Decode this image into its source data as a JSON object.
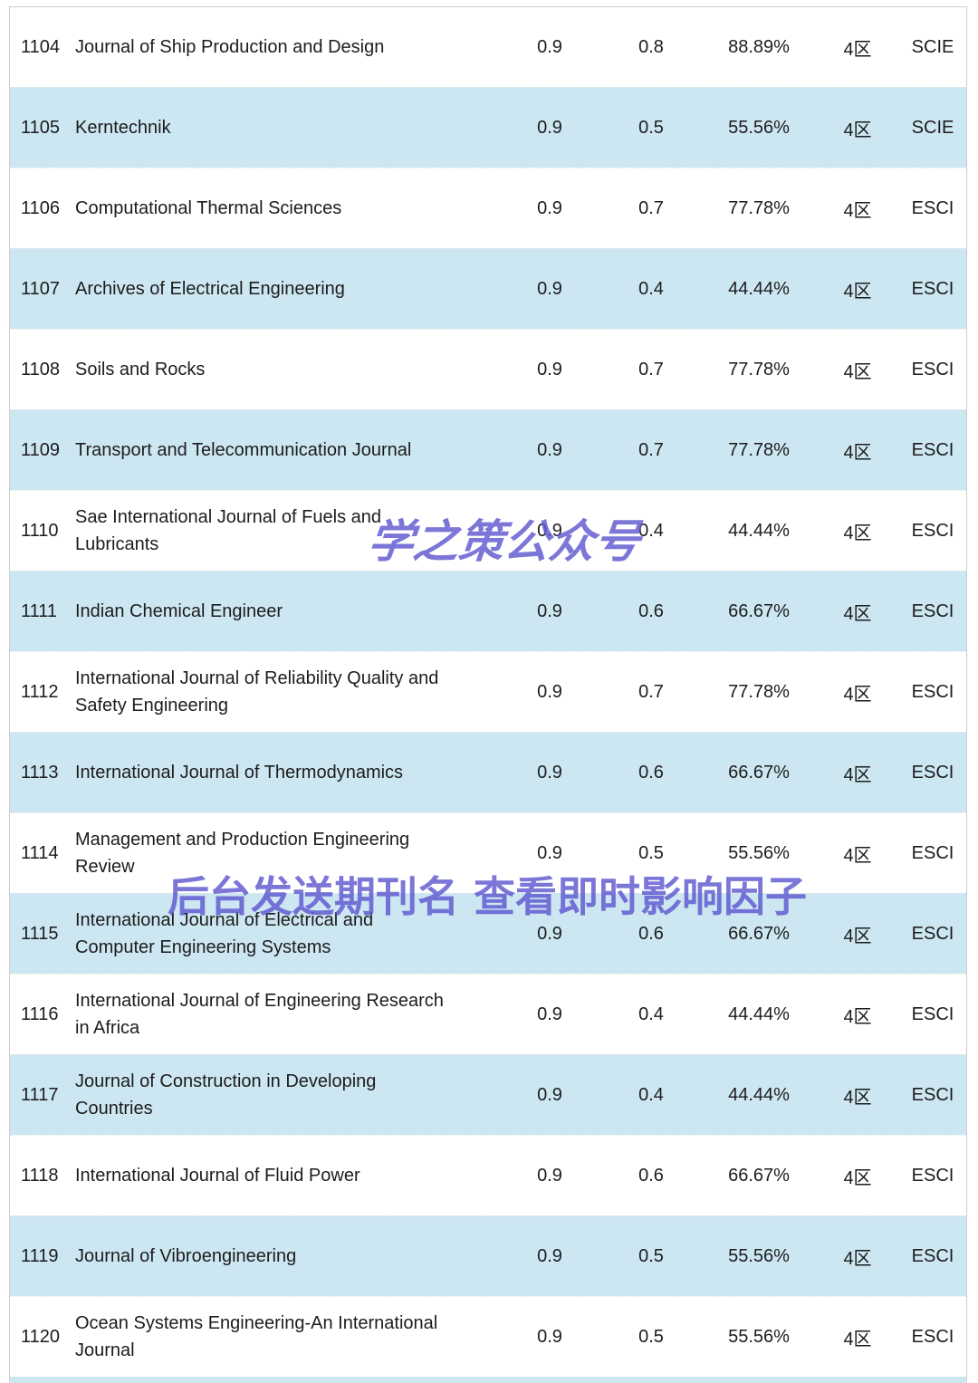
{
  "colors": {
    "row_alt": "#cde7f2",
    "watermark": "#5f58cf",
    "text": "#1c1c1c"
  },
  "watermarks": {
    "wm1": "学之策公众号",
    "wm2": "后台发送期刊名 查看即时影响因子"
  },
  "table": {
    "rows": [
      {
        "rank": "1104",
        "name": "Journal of Ship Production and Design",
        "metric1": "0.9",
        "metric2": "0.8",
        "percent": "88.89%",
        "zone": "4区",
        "index_type": "SCIE"
      },
      {
        "rank": "1105",
        "name": "Kerntechnik",
        "metric1": "0.9",
        "metric2": "0.5",
        "percent": "55.56%",
        "zone": "4区",
        "index_type": "SCIE"
      },
      {
        "rank": "1106",
        "name": "Computational Thermal Sciences",
        "metric1": "0.9",
        "metric2": "0.7",
        "percent": "77.78%",
        "zone": "4区",
        "index_type": "ESCI"
      },
      {
        "rank": "1107",
        "name": "Archives of Electrical Engineering",
        "metric1": "0.9",
        "metric2": "0.4",
        "percent": "44.44%",
        "zone": "4区",
        "index_type": "ESCI"
      },
      {
        "rank": "1108",
        "name": "Soils and Rocks",
        "metric1": "0.9",
        "metric2": "0.7",
        "percent": "77.78%",
        "zone": "4区",
        "index_type": "ESCI"
      },
      {
        "rank": "1109",
        "name": "Transport and Telecommunication Journal",
        "metric1": "0.9",
        "metric2": "0.7",
        "percent": "77.78%",
        "zone": "4区",
        "index_type": "ESCI"
      },
      {
        "rank": "1110",
        "name": "Sae International Journal of Fuels and Lubricants",
        "metric1": "0.9",
        "metric2": "0.4",
        "percent": "44.44%",
        "zone": "4区",
        "index_type": "ESCI"
      },
      {
        "rank": "1111",
        "name": "Indian Chemical Engineer",
        "metric1": "0.9",
        "metric2": "0.6",
        "percent": "66.67%",
        "zone": "4区",
        "index_type": "ESCI"
      },
      {
        "rank": "1112",
        "name": "International Journal of Reliability Quality and Safety Engineering",
        "metric1": "0.9",
        "metric2": "0.7",
        "percent": "77.78%",
        "zone": "4区",
        "index_type": "ESCI"
      },
      {
        "rank": "1113",
        "name": "International Journal of Thermodynamics",
        "metric1": "0.9",
        "metric2": "0.6",
        "percent": "66.67%",
        "zone": "4区",
        "index_type": "ESCI"
      },
      {
        "rank": "1114",
        "name": "Management and Production Engineering Review",
        "metric1": "0.9",
        "metric2": "0.5",
        "percent": "55.56%",
        "zone": "4区",
        "index_type": "ESCI"
      },
      {
        "rank": "1115",
        "name": "International Journal of Electrical and Computer Engineering Systems",
        "metric1": "0.9",
        "metric2": "0.6",
        "percent": "66.67%",
        "zone": "4区",
        "index_type": "ESCI"
      },
      {
        "rank": "1116",
        "name": "International Journal of Engineering Research in Africa",
        "metric1": "0.9",
        "metric2": "0.4",
        "percent": "44.44%",
        "zone": "4区",
        "index_type": "ESCI"
      },
      {
        "rank": "1117",
        "name": "Journal of Construction in Developing Countries",
        "metric1": "0.9",
        "metric2": "0.4",
        "percent": "44.44%",
        "zone": "4区",
        "index_type": "ESCI"
      },
      {
        "rank": "1118",
        "name": "International Journal of Fluid Power",
        "metric1": "0.9",
        "metric2": "0.6",
        "percent": "66.67%",
        "zone": "4区",
        "index_type": "ESCI"
      },
      {
        "rank": "1119",
        "name": "Journal of Vibroengineering",
        "metric1": "0.9",
        "metric2": "0.5",
        "percent": "55.56%",
        "zone": "4区",
        "index_type": "ESCI"
      },
      {
        "rank": "1120",
        "name": "Ocean Systems Engineering-An International Journal",
        "metric1": "0.9",
        "metric2": "0.5",
        "percent": "55.56%",
        "zone": "4区",
        "index_type": "ESCI"
      }
    ]
  }
}
